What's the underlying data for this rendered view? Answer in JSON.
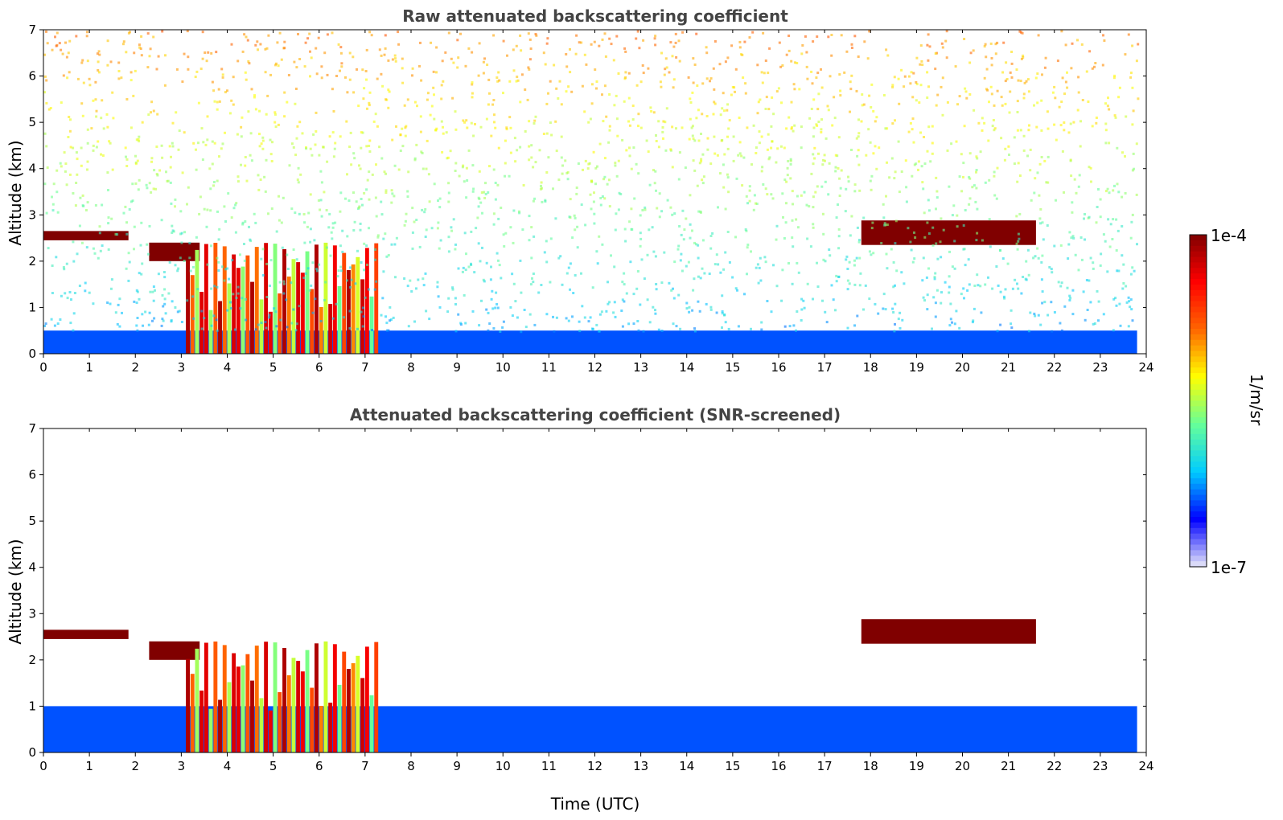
{
  "chart_data": [
    {
      "type": "heatmap",
      "title": "Raw attenuated backscattering coefficient",
      "ylabel": "Altitude (km)",
      "xlabel": "",
      "xlim": [
        0,
        24
      ],
      "ylim": [
        0,
        7
      ],
      "xticks": [
        0,
        1,
        2,
        3,
        4,
        5,
        6,
        7,
        8,
        9,
        10,
        11,
        12,
        13,
        14,
        15,
        16,
        17,
        18,
        19,
        20,
        21,
        22,
        23,
        24
      ],
      "yticks": [
        0,
        1,
        2,
        3,
        4,
        5,
        6,
        7
      ],
      "features": [
        {
          "kind": "surface_aerosol_layer",
          "t": [
            0,
            23.8
          ],
          "alt": [
            0,
            0.5
          ],
          "level": 0.2
        },
        {
          "kind": "cloud_layer",
          "t": [
            0,
            1.85
          ],
          "alt": [
            2.45,
            2.65
          ],
          "level": 1.0
        },
        {
          "kind": "cloud_layer",
          "t": [
            2.3,
            3.4
          ],
          "alt": [
            2.0,
            2.4
          ],
          "level": 1.0
        },
        {
          "kind": "cloud_layer",
          "t": [
            17.8,
            21.6
          ],
          "alt": [
            2.35,
            2.88
          ],
          "level": 1.0
        },
        {
          "kind": "precipitation_columns",
          "t": [
            3.1,
            7.3
          ],
          "alt": [
            0,
            2.4
          ],
          "level": 0.75
        }
      ]
    },
    {
      "type": "heatmap",
      "title": "Attenuated backscattering coefficient (SNR-screened)",
      "ylabel": "Altitude (km)",
      "xlabel": "Time (UTC)",
      "xlim": [
        0,
        24
      ],
      "ylim": [
        0,
        7
      ],
      "xticks": [
        0,
        1,
        2,
        3,
        4,
        5,
        6,
        7,
        8,
        9,
        10,
        11,
        12,
        13,
        14,
        15,
        16,
        17,
        18,
        19,
        20,
        21,
        22,
        23,
        24
      ],
      "yticks": [
        0,
        1,
        2,
        3,
        4,
        5,
        6,
        7
      ],
      "features": [
        {
          "kind": "boundary_layer",
          "t": [
            0,
            23.8
          ],
          "alt": [
            0,
            1.0
          ],
          "level": 0.2
        },
        {
          "kind": "cloud_layer",
          "t": [
            0,
            1.85
          ],
          "alt": [
            2.45,
            2.65
          ],
          "level": 1.0
        },
        {
          "kind": "cloud_layer",
          "t": [
            2.3,
            3.4
          ],
          "alt": [
            2.0,
            2.4
          ],
          "level": 1.0
        },
        {
          "kind": "cloud_layer",
          "t": [
            17.8,
            21.6
          ],
          "alt": [
            2.35,
            2.88
          ],
          "level": 1.0
        },
        {
          "kind": "precipitation_columns",
          "t": [
            3.1,
            7.3
          ],
          "alt": [
            0,
            2.4
          ],
          "level": 0.75
        }
      ]
    }
  ],
  "colorbar": {
    "label": "1/m/sr",
    "max_label": "1e-4",
    "min_label": "1e-7",
    "colormap": [
      "#e8e8f8",
      "#0000ff",
      "#00ccff",
      "#66ff99",
      "#ffff00",
      "#ff6600",
      "#ff0000",
      "#800000"
    ]
  }
}
